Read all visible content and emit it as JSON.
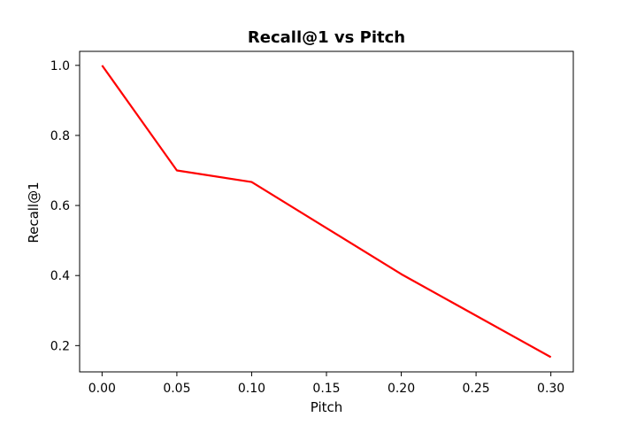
{
  "chart_data": {
    "type": "line",
    "title": "Recall@1 vs Pitch",
    "xlabel": "Pitch",
    "ylabel": "Recall@1",
    "xlim": [
      -0.015,
      0.315
    ],
    "ylim": [
      0.125,
      1.04
    ],
    "x_ticks": [
      0.0,
      0.05,
      0.1,
      0.15,
      0.2,
      0.25,
      0.3
    ],
    "x_tick_labels": [
      "0.00",
      "0.05",
      "0.10",
      "0.15",
      "0.20",
      "0.25",
      "0.30"
    ],
    "y_ticks": [
      0.2,
      0.4,
      0.6,
      0.8,
      1.0
    ],
    "y_tick_labels": [
      "0.2",
      "0.4",
      "0.6",
      "0.8",
      "1.0"
    ],
    "grid": false,
    "series": [
      {
        "color": "#ff0000",
        "x": [
          0.0,
          0.05,
          0.1,
          0.2,
          0.3
        ],
        "y": [
          1.0,
          0.7,
          0.667,
          0.404,
          0.167
        ]
      }
    ]
  }
}
